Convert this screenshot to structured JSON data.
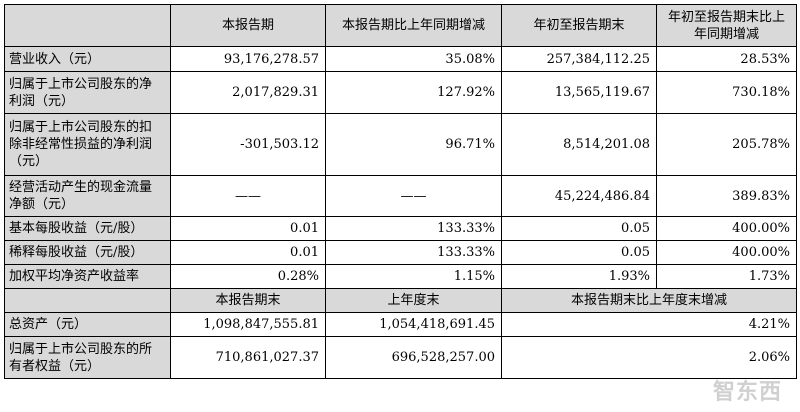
{
  "headers": {
    "blank": "",
    "current_period": "本报告期",
    "yoy_change": "本报告期比上年同期增减",
    "ytd": "年初至报告期末",
    "ytd_yoy_change": "年初至报告期末比上年同期增减"
  },
  "rows": [
    {
      "label": "营业收入（元）",
      "current": "93,176,278.57",
      "yoy": "35.08%",
      "ytd": "257,384,112.25",
      "ytd_yoy": "28.53%"
    },
    {
      "label": "归属于上市公司股东的净利润（元）",
      "current": "2,017,829.31",
      "yoy": "127.92%",
      "ytd": "13,565,119.67",
      "ytd_yoy": "730.18%"
    },
    {
      "label": "归属于上市公司股东的扣除非经常性损益的净利润（元）",
      "current": "-301,503.12",
      "yoy": "96.71%",
      "ytd": "8,514,201.08",
      "ytd_yoy": "205.78%"
    },
    {
      "label": "经营活动产生的现金流量净额（元）",
      "current": "——",
      "yoy": "——",
      "ytd": "45,224,486.84",
      "ytd_yoy": "389.83%"
    },
    {
      "label": "基本每股收益（元/股）",
      "current": "0.01",
      "yoy": "133.33%",
      "ytd": "0.05",
      "ytd_yoy": "400.00%"
    },
    {
      "label": "稀释每股收益（元/股）",
      "current": "0.01",
      "yoy": "133.33%",
      "ytd": "0.05",
      "ytd_yoy": "400.00%"
    },
    {
      "label": "加权平均净资产收益率",
      "current": "0.28%",
      "yoy": "1.15%",
      "ytd": "1.93%",
      "ytd_yoy": "1.73%"
    }
  ],
  "headers2": {
    "blank": "",
    "period_end": "本报告期末",
    "prev_year_end": "上年度末",
    "change": "本报告期末比上年度末增减"
  },
  "rows2": [
    {
      "label": "总资产（元）",
      "period_end": "1,098,847,555.81",
      "prev_year_end": "1,054,418,691.45",
      "change": "4.21%"
    },
    {
      "label": "归属于上市公司股东的所有者权益（元）",
      "period_end": "710,861,027.37",
      "prev_year_end": "696,528,257.00",
      "change": "2.06%"
    }
  ],
  "watermark": "智东西"
}
